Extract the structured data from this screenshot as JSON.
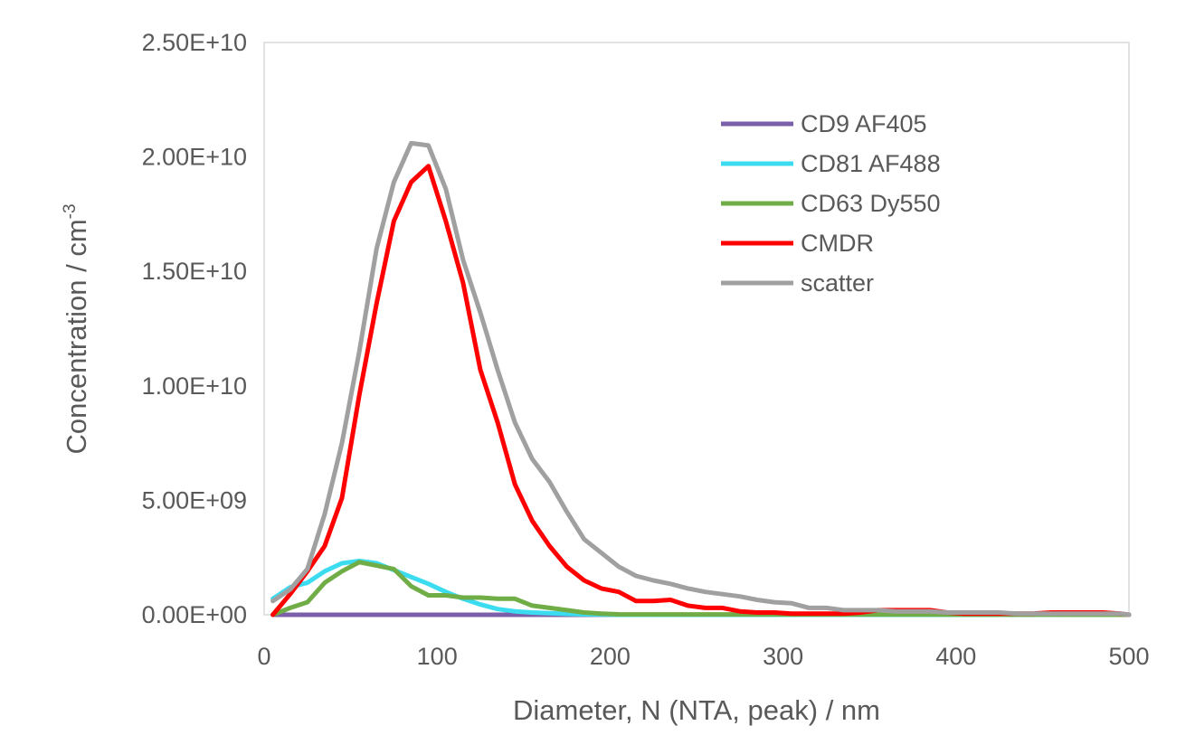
{
  "chart_data": {
    "type": "line",
    "title": "",
    "xlabel": "Diameter, N (NTA, peak) / nm",
    "ylabel_main": "Concentration / cm",
    "ylabel_sup": "-3",
    "xlim": [
      0,
      500
    ],
    "ylim": [
      0,
      25000000000
    ],
    "x_ticks": [
      0,
      100,
      200,
      300,
      400,
      500
    ],
    "x_tick_labels": [
      "0",
      "100",
      "200",
      "300",
      "400",
      "500"
    ],
    "y_ticks": [
      0,
      5000000000,
      10000000000,
      15000000000,
      20000000000,
      25000000000
    ],
    "y_tick_labels": [
      "0.00E+00",
      "5.00E+09",
      "1.00E+10",
      "1.50E+10",
      "2.00E+10",
      "2.50E+10"
    ],
    "grid": false,
    "legend_position": "top-right",
    "series": [
      {
        "name": "CD9 AF405",
        "color": "#7b5fa8",
        "x": [
          5,
          500
        ],
        "y": [
          0,
          0
        ]
      },
      {
        "name": "CD81 AF488",
        "color": "#3cdcf0",
        "x": [
          5,
          15,
          25,
          35,
          45,
          55,
          65,
          75,
          85,
          95,
          105,
          115,
          125,
          135,
          145,
          155,
          165,
          175,
          185,
          195,
          205,
          500
        ],
        "y": [
          700000000,
          1200000000,
          1400000000,
          1900000000,
          2250000000,
          2350000000,
          2250000000,
          1950000000,
          1650000000,
          1350000000,
          1000000000,
          700000000,
          450000000,
          250000000,
          150000000,
          100000000,
          70000000,
          40000000,
          20000000,
          10000000,
          0,
          0
        ]
      },
      {
        "name": "CD63 Dy550",
        "color": "#70ad47",
        "x": [
          5,
          15,
          25,
          35,
          45,
          55,
          65,
          75,
          85,
          95,
          105,
          115,
          125,
          135,
          145,
          155,
          165,
          175,
          185,
          195,
          205,
          500
        ],
        "y": [
          0,
          300000000,
          550000000,
          1400000000,
          1900000000,
          2300000000,
          2150000000,
          2000000000,
          1250000000,
          850000000,
          850000000,
          750000000,
          750000000,
          700000000,
          700000000,
          400000000,
          300000000,
          200000000,
          100000000,
          50000000,
          20000000,
          0
        ]
      },
      {
        "name": "CMDR",
        "color": "#ff0000",
        "x": [
          5,
          15,
          25,
          35,
          45,
          55,
          65,
          75,
          85,
          95,
          105,
          115,
          125,
          135,
          145,
          155,
          165,
          175,
          185,
          195,
          205,
          215,
          225,
          235,
          245,
          255,
          265,
          275,
          285,
          295,
          305,
          315,
          325,
          335,
          345,
          355,
          365,
          375,
          385,
          395,
          405,
          415,
          425,
          435,
          445,
          455,
          465,
          475,
          485,
          495,
          500
        ],
        "y": [
          0,
          900000000,
          1900000000,
          3000000000,
          5100000000,
          9600000000,
          13600000000,
          17200000000,
          18900000000,
          19600000000,
          17200000000,
          14500000000,
          10700000000,
          8400000000,
          5700000000,
          4100000000,
          3000000000,
          2100000000,
          1500000000,
          1150000000,
          1000000000,
          600000000,
          600000000,
          650000000,
          400000000,
          300000000,
          300000000,
          150000000,
          100000000,
          100000000,
          50000000,
          50000000,
          50000000,
          50000000,
          100000000,
          200000000,
          200000000,
          200000000,
          200000000,
          100000000,
          50000000,
          50000000,
          50000000,
          50000000,
          50000000,
          100000000,
          100000000,
          100000000,
          100000000,
          50000000,
          0
        ]
      },
      {
        "name": "scatter",
        "color": "#a0a0a0",
        "x": [
          5,
          15,
          25,
          35,
          45,
          55,
          65,
          75,
          85,
          95,
          105,
          115,
          125,
          135,
          145,
          155,
          165,
          175,
          185,
          195,
          205,
          215,
          225,
          235,
          245,
          255,
          265,
          275,
          285,
          295,
          305,
          315,
          325,
          335,
          345,
          355,
          365,
          375,
          385,
          395,
          405,
          415,
          425,
          435,
          445,
          455,
          465,
          475,
          485,
          495,
          500
        ],
        "y": [
          600000000,
          1100000000,
          2000000000,
          4400000000,
          7500000000,
          11500000000,
          16000000000,
          18900000000,
          20600000000,
          20500000000,
          18600000000,
          15500000000,
          13200000000,
          10700000000,
          8400000000,
          6800000000,
          5800000000,
          4500000000,
          3300000000,
          2700000000,
          2100000000,
          1700000000,
          1500000000,
          1350000000,
          1150000000,
          1000000000,
          900000000,
          800000000,
          650000000,
          550000000,
          500000000,
          300000000,
          300000000,
          200000000,
          200000000,
          200000000,
          150000000,
          150000000,
          150000000,
          100000000,
          100000000,
          100000000,
          100000000,
          50000000,
          50000000,
          50000000,
          50000000,
          50000000,
          50000000,
          50000000,
          0
        ]
      }
    ]
  }
}
